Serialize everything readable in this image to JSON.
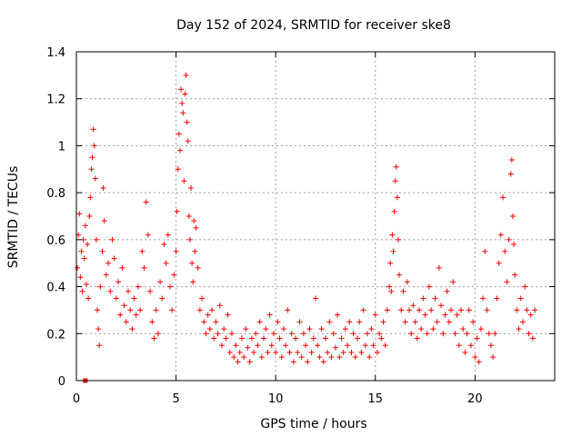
{
  "chart_data": {
    "type": "scatter",
    "title": "Day 152 of 2024, SRMTID for receiver ske8",
    "xlabel": "GPS time / hours",
    "ylabel": "SRMTID / TECUs",
    "xlim": [
      0,
      24
    ],
    "ylim": [
      0,
      1.4
    ],
    "xticks": [
      0,
      5,
      10,
      15,
      20
    ],
    "xtick_labels": [
      "0",
      "5",
      "10",
      "15",
      "20"
    ],
    "yticks": [
      0,
      0.2,
      0.4,
      0.6,
      0.8,
      1,
      1.2,
      1.4
    ],
    "ytick_labels": [
      "0",
      "0.2",
      "0.4",
      "0.6",
      "0.8",
      "1",
      "1.2",
      "1.4"
    ],
    "grid": true,
    "marker": "plus",
    "color": "#ff0000",
    "points": [
      [
        0.05,
        0.48
      ],
      [
        0.1,
        0.62
      ],
      [
        0.15,
        0.71
      ],
      [
        0.2,
        0.44
      ],
      [
        0.25,
        0.55
      ],
      [
        0.3,
        0.38
      ],
      [
        0.35,
        0.6
      ],
      [
        0.4,
        0.52
      ],
      [
        0.45,
        0.66
      ],
      [
        0.5,
        0.41
      ],
      [
        0.55,
        0.58
      ],
      [
        0.6,
        0.35
      ],
      [
        0.65,
        0.7
      ],
      [
        0.7,
        0.78
      ],
      [
        0.75,
        0.9
      ],
      [
        0.8,
        0.95
      ],
      [
        0.85,
        1.07
      ],
      [
        0.9,
        1.0
      ],
      [
        0.95,
        0.86
      ],
      [
        1.0,
        0.6
      ],
      [
        1.05,
        0.3
      ],
      [
        1.1,
        0.22
      ],
      [
        1.15,
        0.15
      ],
      [
        1.2,
        0.4
      ],
      [
        1.3,
        0.55
      ],
      [
        1.35,
        0.82
      ],
      [
        1.4,
        0.68
      ],
      [
        1.5,
        0.45
      ],
      [
        1.6,
        0.5
      ],
      [
        1.7,
        0.38
      ],
      [
        1.8,
        0.6
      ],
      [
        1.9,
        0.52
      ],
      [
        2.0,
        0.35
      ],
      [
        2.1,
        0.42
      ],
      [
        2.2,
        0.28
      ],
      [
        2.3,
        0.48
      ],
      [
        2.4,
        0.32
      ],
      [
        2.5,
        0.25
      ],
      [
        2.6,
        0.38
      ],
      [
        2.7,
        0.3
      ],
      [
        2.8,
        0.22
      ],
      [
        2.9,
        0.35
      ],
      [
        3.0,
        0.28
      ],
      [
        3.1,
        0.4
      ],
      [
        3.2,
        0.3
      ],
      [
        3.3,
        0.55
      ],
      [
        3.4,
        0.48
      ],
      [
        3.5,
        0.76
      ],
      [
        3.6,
        0.62
      ],
      [
        3.7,
        0.38
      ],
      [
        3.8,
        0.25
      ],
      [
        3.9,
        0.18
      ],
      [
        4.0,
        0.3
      ],
      [
        4.1,
        0.2
      ],
      [
        4.2,
        0.42
      ],
      [
        4.3,
        0.35
      ],
      [
        4.4,
        0.58
      ],
      [
        4.5,
        0.5
      ],
      [
        4.6,
        0.62
      ],
      [
        4.7,
        0.4
      ],
      [
        4.8,
        0.3
      ],
      [
        4.9,
        0.45
      ],
      [
        5.0,
        0.55
      ],
      [
        5.05,
        0.72
      ],
      [
        5.1,
        0.9
      ],
      [
        5.15,
        1.05
      ],
      [
        5.2,
        0.98
      ],
      [
        5.25,
        1.24
      ],
      [
        5.3,
        1.18
      ],
      [
        5.35,
        1.14
      ],
      [
        5.4,
        0.85
      ],
      [
        5.45,
        1.22
      ],
      [
        5.5,
        1.3
      ],
      [
        5.55,
        1.1
      ],
      [
        5.6,
        1.02
      ],
      [
        5.65,
        0.7
      ],
      [
        5.7,
        0.6
      ],
      [
        5.75,
        0.82
      ],
      [
        5.8,
        0.5
      ],
      [
        5.85,
        0.42
      ],
      [
        5.9,
        0.68
      ],
      [
        5.95,
        0.55
      ],
      [
        6.0,
        0.65
      ],
      [
        6.1,
        0.48
      ],
      [
        6.2,
        0.3
      ],
      [
        6.3,
        0.35
      ],
      [
        6.4,
        0.25
      ],
      [
        6.5,
        0.2
      ],
      [
        6.6,
        0.28
      ],
      [
        6.7,
        0.22
      ],
      [
        6.8,
        0.3
      ],
      [
        6.9,
        0.18
      ],
      [
        7.0,
        0.25
      ],
      [
        7.1,
        0.2
      ],
      [
        7.2,
        0.32
      ],
      [
        7.3,
        0.15
      ],
      [
        7.4,
        0.22
      ],
      [
        7.5,
        0.18
      ],
      [
        7.6,
        0.28
      ],
      [
        7.7,
        0.12
      ],
      [
        7.8,
        0.2
      ],
      [
        7.9,
        0.1
      ],
      [
        8.0,
        0.15
      ],
      [
        8.1,
        0.08
      ],
      [
        8.2,
        0.12
      ],
      [
        8.3,
        0.18
      ],
      [
        8.4,
        0.1
      ],
      [
        8.5,
        0.22
      ],
      [
        8.6,
        0.14
      ],
      [
        8.7,
        0.08
      ],
      [
        8.8,
        0.18
      ],
      [
        8.9,
        0.12
      ],
      [
        9.0,
        0.2
      ],
      [
        9.1,
        0.15
      ],
      [
        9.2,
        0.25
      ],
      [
        9.3,
        0.1
      ],
      [
        9.4,
        0.18
      ],
      [
        9.5,
        0.22
      ],
      [
        9.6,
        0.12
      ],
      [
        9.7,
        0.28
      ],
      [
        9.8,
        0.15
      ],
      [
        9.9,
        0.2
      ],
      [
        10.0,
        0.12
      ],
      [
        10.1,
        0.25
      ],
      [
        10.2,
        0.18
      ],
      [
        10.3,
        0.1
      ],
      [
        10.4,
        0.22
      ],
      [
        10.5,
        0.15
      ],
      [
        10.6,
        0.3
      ],
      [
        10.7,
        0.12
      ],
      [
        10.8,
        0.2
      ],
      [
        10.9,
        0.08
      ],
      [
        11.0,
        0.18
      ],
      [
        11.1,
        0.12
      ],
      [
        11.2,
        0.25
      ],
      [
        11.3,
        0.1
      ],
      [
        11.4,
        0.2
      ],
      [
        11.5,
        0.15
      ],
      [
        11.6,
        0.08
      ],
      [
        11.7,
        0.22
      ],
      [
        11.8,
        0.12
      ],
      [
        11.9,
        0.18
      ],
      [
        12.0,
        0.35
      ],
      [
        12.1,
        0.15
      ],
      [
        12.2,
        0.1
      ],
      [
        12.3,
        0.22
      ],
      [
        12.4,
        0.08
      ],
      [
        12.5,
        0.18
      ],
      [
        12.6,
        0.12
      ],
      [
        12.7,
        0.25
      ],
      [
        12.8,
        0.1
      ],
      [
        12.9,
        0.2
      ],
      [
        13.0,
        0.14
      ],
      [
        13.1,
        0.28
      ],
      [
        13.2,
        0.1
      ],
      [
        13.3,
        0.18
      ],
      [
        13.4,
        0.12
      ],
      [
        13.5,
        0.22
      ],
      [
        13.6,
        0.15
      ],
      [
        13.7,
        0.25
      ],
      [
        13.8,
        0.12
      ],
      [
        13.9,
        0.2
      ],
      [
        14.0,
        0.1
      ],
      [
        14.1,
        0.18
      ],
      [
        14.2,
        0.25
      ],
      [
        14.3,
        0.12
      ],
      [
        14.4,
        0.3
      ],
      [
        14.5,
        0.15
      ],
      [
        14.6,
        0.2
      ],
      [
        14.7,
        0.1
      ],
      [
        14.8,
        0.22
      ],
      [
        14.9,
        0.15
      ],
      [
        15.0,
        0.28
      ],
      [
        15.1,
        0.12
      ],
      [
        15.2,
        0.2
      ],
      [
        15.3,
        0.18
      ],
      [
        15.4,
        0.25
      ],
      [
        15.5,
        0.15
      ],
      [
        15.6,
        0.3
      ],
      [
        15.7,
        0.4
      ],
      [
        15.75,
        0.5
      ],
      [
        15.8,
        0.38
      ],
      [
        15.85,
        0.62
      ],
      [
        15.9,
        0.55
      ],
      [
        15.95,
        0.72
      ],
      [
        16.0,
        0.85
      ],
      [
        16.05,
        0.91
      ],
      [
        16.1,
        0.78
      ],
      [
        16.15,
        0.6
      ],
      [
        16.2,
        0.45
      ],
      [
        16.3,
        0.3
      ],
      [
        16.4,
        0.38
      ],
      [
        16.5,
        0.25
      ],
      [
        16.6,
        0.42
      ],
      [
        16.7,
        0.3
      ],
      [
        16.8,
        0.2
      ],
      [
        16.9,
        0.32
      ],
      [
        17.0,
        0.25
      ],
      [
        17.1,
        0.18
      ],
      [
        17.2,
        0.3
      ],
      [
        17.3,
        0.22
      ],
      [
        17.4,
        0.35
      ],
      [
        17.5,
        0.28
      ],
      [
        17.6,
        0.2
      ],
      [
        17.7,
        0.4
      ],
      [
        17.8,
        0.3
      ],
      [
        17.9,
        0.22
      ],
      [
        18.0,
        0.35
      ],
      [
        18.1,
        0.25
      ],
      [
        18.2,
        0.48
      ],
      [
        18.3,
        0.32
      ],
      [
        18.4,
        0.2
      ],
      [
        18.5,
        0.28
      ],
      [
        18.6,
        0.38
      ],
      [
        18.7,
        0.25
      ],
      [
        18.8,
        0.3
      ],
      [
        18.9,
        0.42
      ],
      [
        19.0,
        0.2
      ],
      [
        19.1,
        0.28
      ],
      [
        19.2,
        0.15
      ],
      [
        19.3,
        0.3
      ],
      [
        19.4,
        0.22
      ],
      [
        19.5,
        0.12
      ],
      [
        19.6,
        0.2
      ],
      [
        19.7,
        0.3
      ],
      [
        19.8,
        0.15
      ],
      [
        19.9,
        0.25
      ],
      [
        20.0,
        0.1
      ],
      [
        20.1,
        0.18
      ],
      [
        20.2,
        0.08
      ],
      [
        20.3,
        0.22
      ],
      [
        20.4,
        0.35
      ],
      [
        20.5,
        0.55
      ],
      [
        20.6,
        0.3
      ],
      [
        20.7,
        0.2
      ],
      [
        20.8,
        0.15
      ],
      [
        20.9,
        0.1
      ],
      [
        21.0,
        0.2
      ],
      [
        21.1,
        0.35
      ],
      [
        21.2,
        0.5
      ],
      [
        21.3,
        0.62
      ],
      [
        21.4,
        0.78
      ],
      [
        21.5,
        0.55
      ],
      [
        21.6,
        0.42
      ],
      [
        21.7,
        0.6
      ],
      [
        21.8,
        0.88
      ],
      [
        21.85,
        0.94
      ],
      [
        21.9,
        0.7
      ],
      [
        21.95,
        0.58
      ],
      [
        22.0,
        0.45
      ],
      [
        22.1,
        0.3
      ],
      [
        22.2,
        0.22
      ],
      [
        22.3,
        0.35
      ],
      [
        22.4,
        0.25
      ],
      [
        22.5,
        0.4
      ],
      [
        22.6,
        0.3
      ],
      [
        22.7,
        0.2
      ],
      [
        22.8,
        0.28
      ],
      [
        22.9,
        0.18
      ],
      [
        23.0,
        0.3
      ]
    ],
    "highlight_point": [
      0.45,
      0.0
    ]
  }
}
